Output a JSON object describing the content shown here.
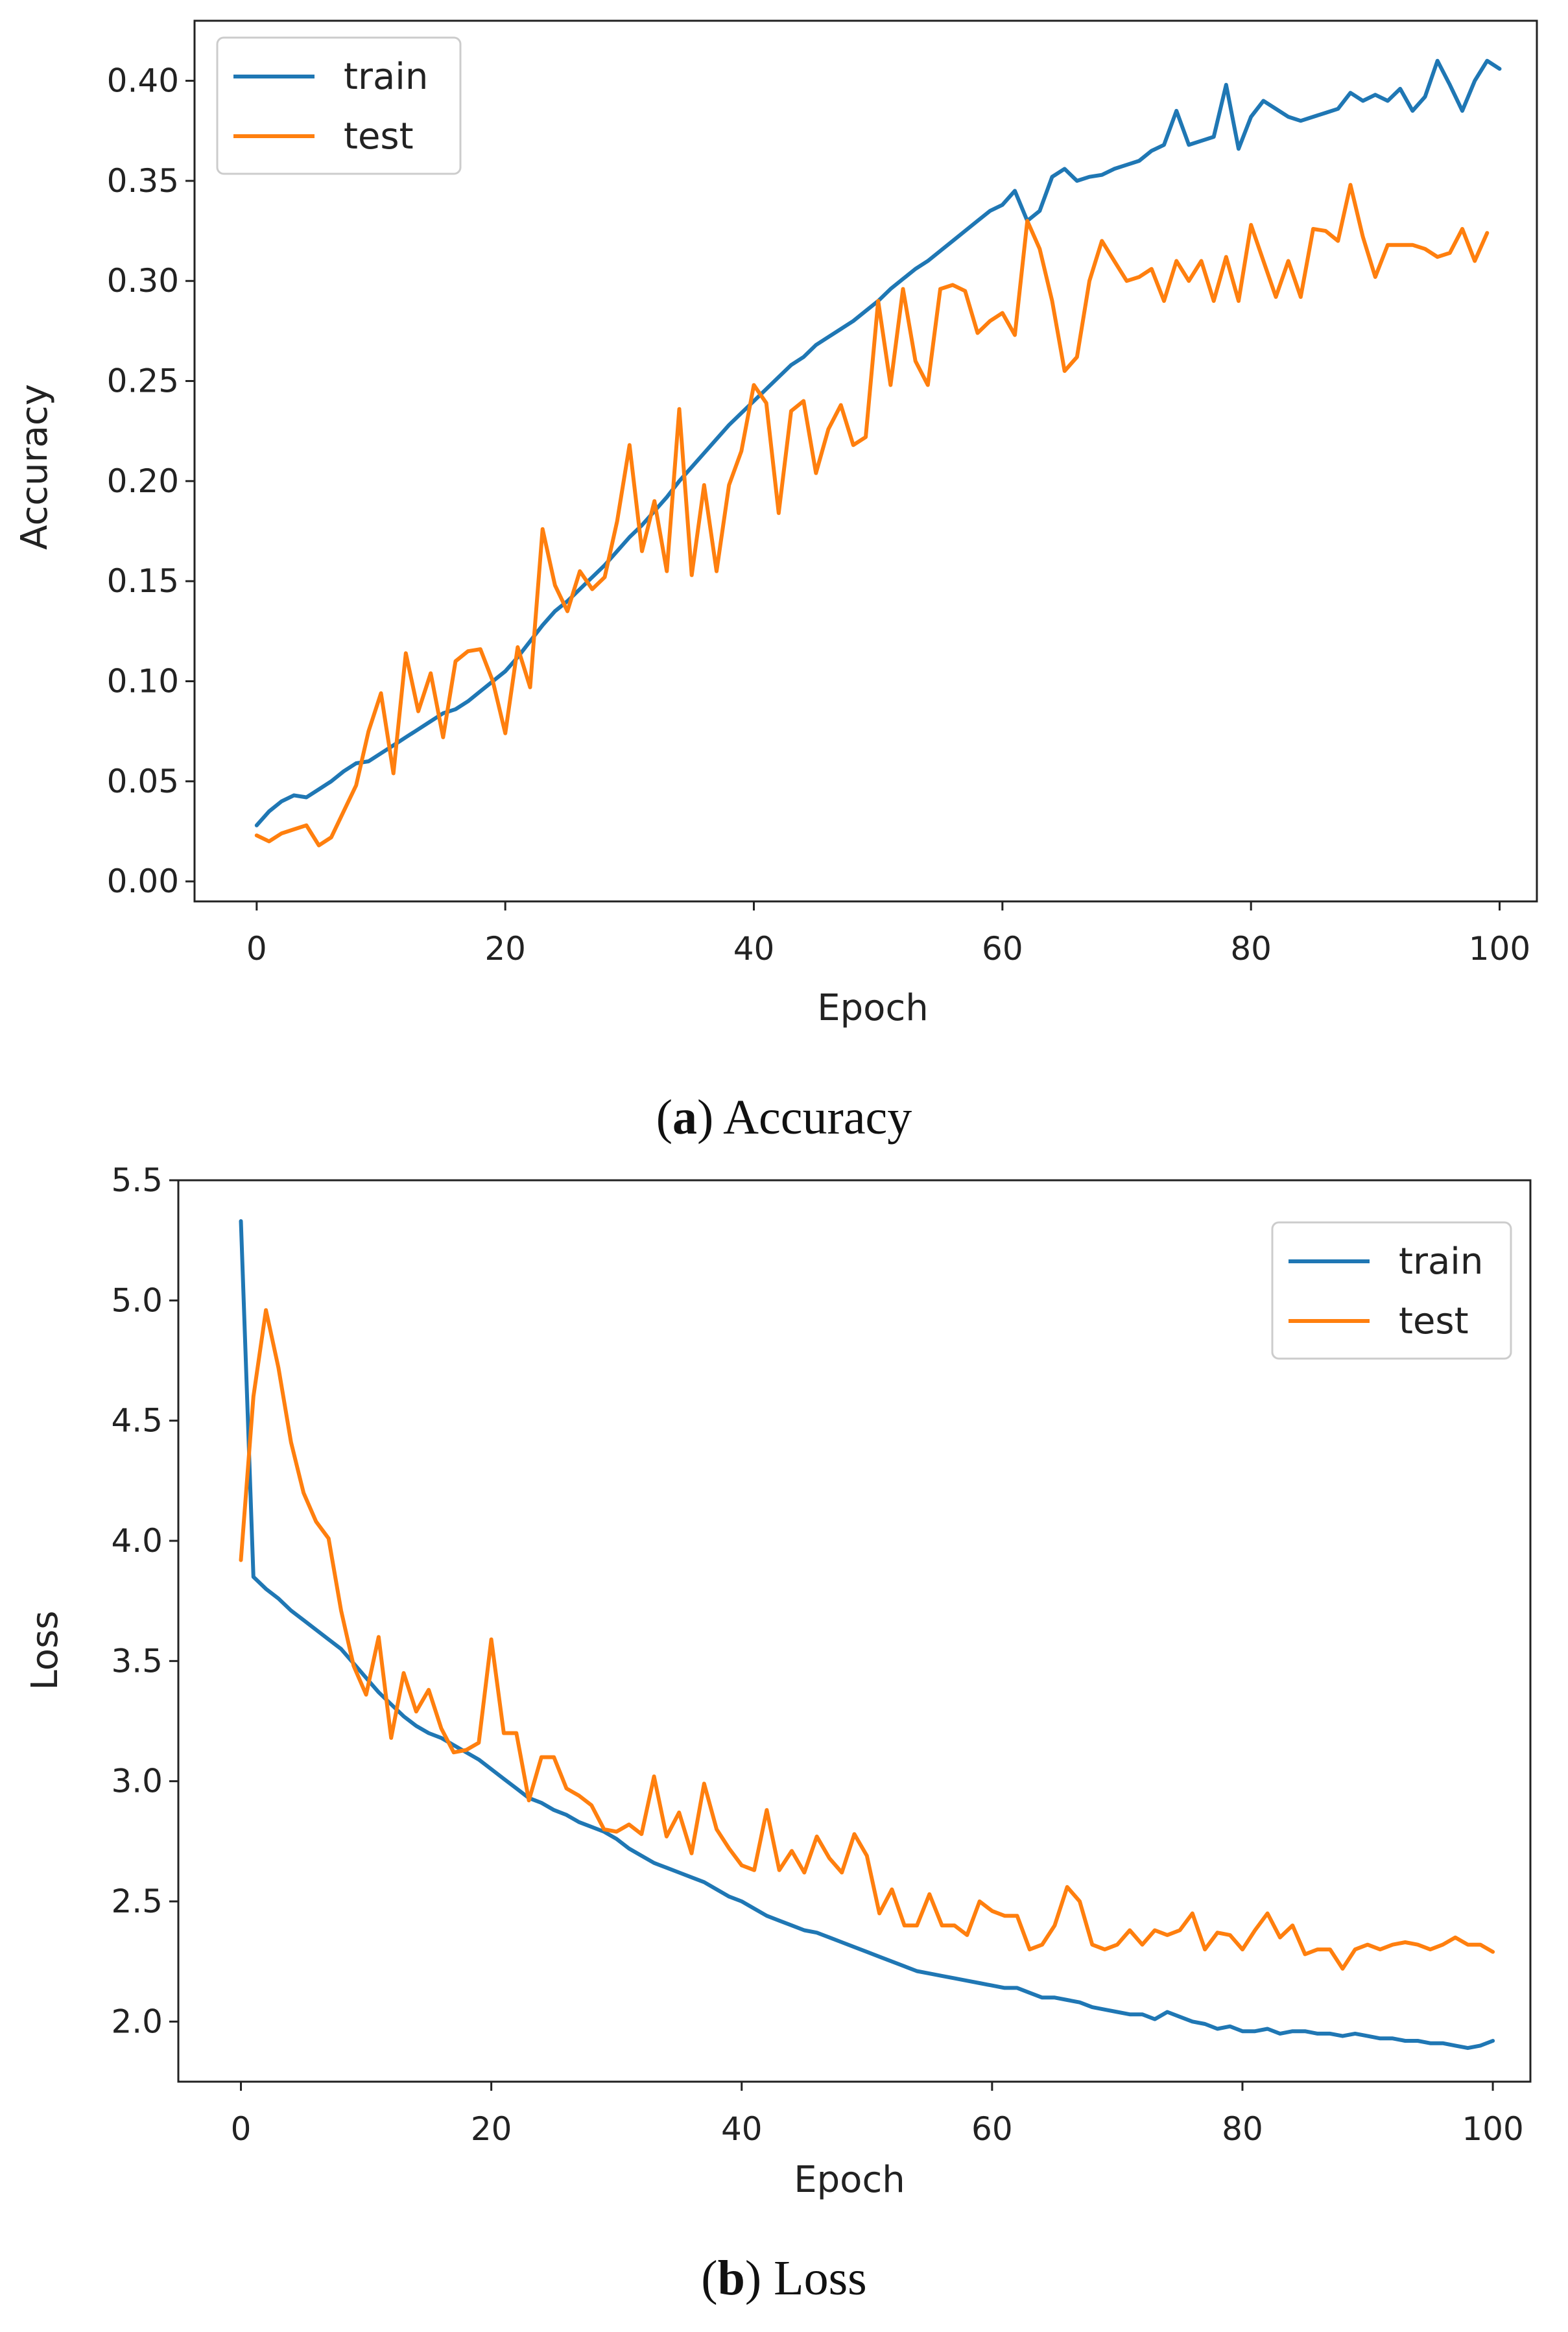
{
  "chart_data": [
    {
      "type": "line",
      "id": "a",
      "xlabel": "Epoch",
      "ylabel": "Accuracy",
      "xlim": [
        -5,
        103
      ],
      "ylim": [
        -0.01,
        0.43
      ],
      "xticks": [
        0,
        20,
        40,
        60,
        80,
        100
      ],
      "xtick_labels": [
        "0",
        "20",
        "40",
        "60",
        "80",
        "100"
      ],
      "yticks": [
        0.0,
        0.05,
        0.1,
        0.15,
        0.2,
        0.25,
        0.3,
        0.35,
        0.4
      ],
      "ytick_labels": [
        "0.00",
        "0.05",
        "0.10",
        "0.15",
        "0.20",
        "0.25",
        "0.30",
        "0.35",
        "0.40"
      ],
      "legend_position": "top-left",
      "caption_label": "a",
      "caption_text": "Accuracy",
      "series": [
        {
          "name": "train",
          "color": "#1f77b4",
          "values": [
            0.028,
            0.035,
            0.04,
            0.043,
            0.042,
            0.046,
            0.05,
            0.055,
            0.059,
            0.06,
            0.064,
            0.068,
            0.072,
            0.076,
            0.08,
            0.084,
            0.086,
            0.09,
            0.095,
            0.1,
            0.105,
            0.112,
            0.12,
            0.128,
            0.135,
            0.14,
            0.146,
            0.152,
            0.158,
            0.165,
            0.172,
            0.178,
            0.185,
            0.192,
            0.2,
            0.207,
            0.214,
            0.221,
            0.228,
            0.234,
            0.24,
            0.246,
            0.252,
            0.258,
            0.262,
            0.268,
            0.272,
            0.276,
            0.28,
            0.285,
            0.29,
            0.296,
            0.301,
            0.306,
            0.31,
            0.315,
            0.32,
            0.325,
            0.33,
            0.335,
            0.338,
            0.345,
            0.33,
            0.335,
            0.352,
            0.356,
            0.35,
            0.352,
            0.353,
            0.356,
            0.358,
            0.36,
            0.365,
            0.368,
            0.385,
            0.368,
            0.37,
            0.372,
            0.398,
            0.366,
            0.382,
            0.39,
            0.386,
            0.382,
            0.38,
            0.382,
            0.384,
            0.386,
            0.394,
            0.39,
            0.393,
            0.39,
            0.396,
            0.385,
            0.392,
            0.41,
            0.398,
            0.385,
            0.4,
            0.41,
            0.406
          ]
        },
        {
          "name": "test",
          "color": "#ff7f0e",
          "values": [
            0.023,
            0.02,
            0.024,
            0.026,
            0.028,
            0.018,
            0.022,
            0.035,
            0.048,
            0.075,
            0.094,
            0.054,
            0.114,
            0.085,
            0.104,
            0.072,
            0.11,
            0.115,
            0.116,
            0.1,
            0.074,
            0.117,
            0.097,
            0.176,
            0.148,
            0.135,
            0.155,
            0.146,
            0.152,
            0.18,
            0.218,
            0.165,
            0.19,
            0.155,
            0.236,
            0.153,
            0.198,
            0.155,
            0.198,
            0.215,
            0.248,
            0.239,
            0.184,
            0.235,
            0.24,
            0.204,
            0.226,
            0.238,
            0.218,
            0.222,
            0.29,
            0.248,
            0.296,
            0.26,
            0.248,
            0.296,
            0.298,
            0.295,
            0.274,
            0.28,
            0.284,
            0.273,
            0.33,
            0.316,
            0.29,
            0.255,
            0.262,
            0.3,
            0.32,
            0.31,
            0.3,
            0.302,
            0.306,
            0.29,
            0.31,
            0.3,
            0.31,
            0.29,
            0.312,
            0.29,
            0.328,
            0.31,
            0.292,
            0.31,
            0.292,
            0.326,
            0.325,
            0.32,
            0.348,
            0.322,
            0.302,
            0.318,
            0.318,
            0.318,
            0.316,
            0.312,
            0.314,
            0.326,
            0.31,
            0.324
          ]
        }
      ]
    },
    {
      "type": "line",
      "id": "b",
      "xlabel": "Epoch",
      "ylabel": "Loss",
      "xlim": [
        -5,
        103
      ],
      "ylim": [
        1.75,
        5.5
      ],
      "xticks": [
        0,
        20,
        40,
        60,
        80,
        100
      ],
      "xtick_labels": [
        "0",
        "20",
        "40",
        "60",
        "80",
        "100"
      ],
      "yticks": [
        2.0,
        2.5,
        3.0,
        3.5,
        4.0,
        4.5,
        5.0,
        5.5
      ],
      "ytick_labels": [
        "2.0",
        "2.5",
        "3.0",
        "3.5",
        "4.0",
        "4.5",
        "5.0",
        "5.5"
      ],
      "legend_position": "top-right",
      "caption_label": "b",
      "caption_text": "Loss",
      "series": [
        {
          "name": "train",
          "color": "#1f77b4",
          "values": [
            5.33,
            3.85,
            3.8,
            3.76,
            3.71,
            3.67,
            3.63,
            3.59,
            3.55,
            3.49,
            3.43,
            3.37,
            3.32,
            3.27,
            3.23,
            3.2,
            3.18,
            3.15,
            3.12,
            3.09,
            3.05,
            3.01,
            2.97,
            2.93,
            2.91,
            2.88,
            2.86,
            2.83,
            2.81,
            2.79,
            2.76,
            2.72,
            2.69,
            2.66,
            2.64,
            2.62,
            2.6,
            2.58,
            2.55,
            2.52,
            2.5,
            2.47,
            2.44,
            2.42,
            2.4,
            2.38,
            2.37,
            2.35,
            2.33,
            2.31,
            2.29,
            2.27,
            2.25,
            2.23,
            2.21,
            2.2,
            2.19,
            2.18,
            2.17,
            2.16,
            2.15,
            2.14,
            2.14,
            2.12,
            2.1,
            2.1,
            2.09,
            2.08,
            2.06,
            2.05,
            2.04,
            2.03,
            2.03,
            2.01,
            2.04,
            2.02,
            2.0,
            1.99,
            1.97,
            1.98,
            1.96,
            1.96,
            1.97,
            1.95,
            1.96,
            1.96,
            1.95,
            1.95,
            1.94,
            1.95,
            1.94,
            1.93,
            1.93,
            1.92,
            1.92,
            1.91,
            1.91,
            1.9,
            1.89,
            1.9,
            1.92
          ]
        },
        {
          "name": "test",
          "color": "#ff7f0e",
          "values": [
            3.92,
            4.6,
            4.96,
            4.72,
            4.41,
            4.2,
            4.08,
            4.01,
            3.71,
            3.48,
            3.36,
            3.6,
            3.18,
            3.45,
            3.29,
            3.38,
            3.22,
            3.12,
            3.13,
            3.16,
            3.59,
            3.2,
            3.2,
            2.92,
            3.1,
            3.1,
            2.97,
            2.94,
            2.9,
            2.8,
            2.79,
            2.82,
            2.78,
            3.02,
            2.77,
            2.87,
            2.7,
            2.99,
            2.8,
            2.72,
            2.65,
            2.63,
            2.88,
            2.63,
            2.71,
            2.62,
            2.77,
            2.68,
            2.62,
            2.78,
            2.69,
            2.45,
            2.55,
            2.4,
            2.4,
            2.53,
            2.4,
            2.4,
            2.36,
            2.5,
            2.46,
            2.44,
            2.44,
            2.3,
            2.32,
            2.4,
            2.56,
            2.5,
            2.32,
            2.3,
            2.32,
            2.38,
            2.32,
            2.38,
            2.36,
            2.38,
            2.45,
            2.3,
            2.37,
            2.36,
            2.3,
            2.38,
            2.45,
            2.35,
            2.4,
            2.28,
            2.3,
            2.3,
            2.22,
            2.3,
            2.32,
            2.3,
            2.32,
            2.33,
            2.32,
            2.3,
            2.32,
            2.35,
            2.32,
            2.32,
            2.29
          ]
        }
      ]
    }
  ]
}
